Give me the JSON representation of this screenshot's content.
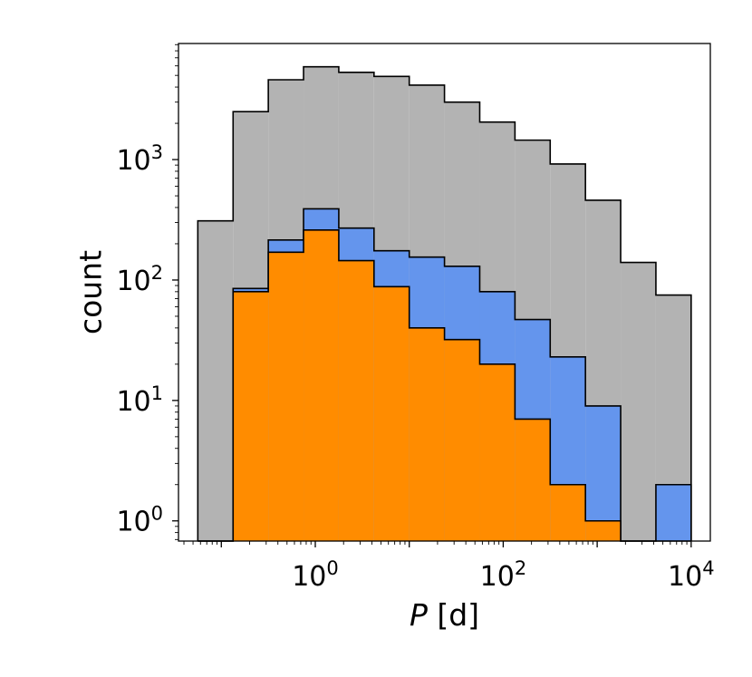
{
  "chart_data": {
    "type": "histogram",
    "xscale": "log",
    "yscale": "log",
    "xlabel_italic": "P",
    "xlabel_rest": " [d]",
    "ylabel": "count",
    "xlim": [
      0.035,
      16000
    ],
    "ylim": [
      0.68,
      9200
    ],
    "grid": false,
    "bin_edges": [
      0.0562,
      0.1334,
      0.3162,
      0.7499,
      1.7783,
      4.217,
      10.0,
      23.71,
      56.23,
      133.35,
      316.2,
      749.9,
      1778.3,
      4217,
      10000
    ],
    "series": [
      {
        "color": "#b3b3b3",
        "values": [
          310,
          2500,
          4600,
          5900,
          5300,
          4900,
          4150,
          3000,
          2050,
          1450,
          920,
          460,
          140,
          75
        ]
      },
      {
        "color": "#6495ed",
        "values": [
          0,
          85,
          215,
          390,
          270,
          175,
          155,
          130,
          80,
          47,
          23,
          9,
          0,
          2
        ]
      },
      {
        "color": "#ff8c00",
        "values": [
          0,
          80,
          170,
          260,
          145,
          88,
          40,
          32,
          20,
          7,
          2,
          1,
          0,
          0
        ]
      }
    ],
    "x_ticks": [
      {
        "value": 1,
        "base": "10",
        "exp": "0"
      },
      {
        "value": 100,
        "base": "10",
        "exp": "2"
      },
      {
        "value": 10000,
        "base": "10",
        "exp": "4"
      }
    ],
    "y_ticks": [
      {
        "value": 1,
        "base": "10",
        "exp": "0"
      },
      {
        "value": 10,
        "base": "10",
        "exp": "1"
      },
      {
        "value": 100,
        "base": "10",
        "exp": "2"
      },
      {
        "value": 1000,
        "base": "10",
        "exp": "3"
      }
    ]
  }
}
